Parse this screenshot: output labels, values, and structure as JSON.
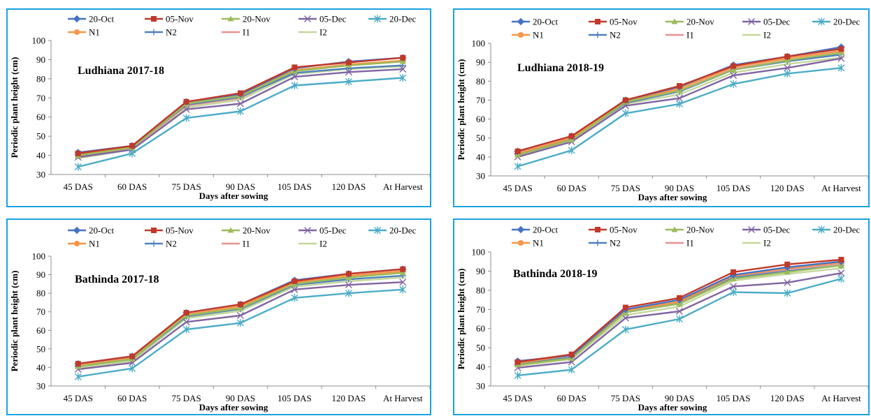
{
  "chart_data": [
    {
      "type": "line",
      "title": "Ludhiana 2017-18",
      "xlabel": "Days after sowing",
      "ylabel": "Periodic plant height (cm)",
      "ylim": [
        30,
        100
      ],
      "yticks": [
        30,
        40,
        50,
        60,
        70,
        80,
        90,
        100
      ],
      "categories": [
        "45 DAS",
        "60 DAS",
        "75 DAS",
        "90 DAS",
        "105 DAS",
        "120 DAS",
        "At Harvest"
      ],
      "series": [
        {
          "name": "20-Oct",
          "values": [
            41.5,
            45,
            68,
            72,
            85.5,
            89,
            91
          ]
        },
        {
          "name": "05-Nov",
          "values": [
            41,
            45,
            68,
            72.5,
            86,
            88.5,
            91
          ]
        },
        {
          "name": "20-Nov",
          "values": [
            40,
            44,
            67,
            71,
            84,
            87,
            89
          ]
        },
        {
          "name": "05-Dec",
          "values": [
            39,
            43,
            64,
            67,
            81,
            83.5,
            85
          ]
        },
        {
          "name": "20-Dec",
          "values": [
            34,
            41,
            59.5,
            63,
            76.5,
            78.5,
            80.5
          ]
        },
        {
          "name": "N1",
          "values": [
            40,
            44.5,
            67,
            71.5,
            84.5,
            87.5,
            89.5
          ]
        },
        {
          "name": "N2",
          "values": [
            40.5,
            44.5,
            66.5,
            70.5,
            83,
            85.5,
            87
          ]
        },
        {
          "name": "I1",
          "values": [
            39.5,
            44,
            66,
            70,
            84,
            87,
            89
          ]
        },
        {
          "name": "I2",
          "values": [
            38.5,
            43,
            65,
            69,
            82.5,
            85,
            86.5
          ]
        }
      ]
    },
    {
      "type": "line",
      "title": "Ludhiana  2018-19",
      "xlabel": "Days after sowing",
      "ylabel": "Periodic plant height (cm)",
      "ylim": [
        30,
        100
      ],
      "yticks": [
        30,
        40,
        50,
        60,
        70,
        80,
        90,
        100
      ],
      "categories": [
        "45 DAS",
        "60 DAS",
        "75 DAS",
        "90 DAS",
        "105 DAS",
        "120 DAS",
        "At Harvest"
      ],
      "series": [
        {
          "name": "20-Oct",
          "values": [
            43,
            51,
            70,
            77,
            88.5,
            93,
            98
          ]
        },
        {
          "name": "05-Nov",
          "values": [
            43,
            51,
            70,
            77.5,
            88,
            93,
            97
          ]
        },
        {
          "name": "20-Nov",
          "values": [
            41,
            49,
            69,
            75,
            86,
            91,
            95
          ]
        },
        {
          "name": "05-Dec",
          "values": [
            40,
            48,
            67,
            71,
            83,
            87,
            92
          ]
        },
        {
          "name": "20-Dec",
          "values": [
            35,
            43.5,
            63,
            68,
            78.5,
            84,
            87
          ]
        },
        {
          "name": "N1",
          "values": [
            42,
            50,
            69.5,
            76,
            87.5,
            92,
            96
          ]
        },
        {
          "name": "N2",
          "values": [
            42,
            49.5,
            68.5,
            74.5,
            86,
            90.5,
            94
          ]
        },
        {
          "name": "I1",
          "values": [
            41.5,
            49.5,
            69,
            75,
            86.5,
            91,
            95
          ]
        },
        {
          "name": "I2",
          "values": [
            40.5,
            48,
            68,
            73,
            84.5,
            89,
            92.5
          ]
        }
      ]
    },
    {
      "type": "line",
      "title": "Bathinda 2017-18",
      "xlabel": "Days after sowing",
      "ylabel": "Periodic plant height (cm)",
      "ylim": [
        30,
        100
      ],
      "yticks": [
        30,
        40,
        50,
        60,
        70,
        80,
        90,
        100
      ],
      "categories": [
        "45 DAS",
        "60 DAS",
        "75 DAS",
        "90 DAS",
        "105 DAS",
        "120 DAS",
        "At Harvest"
      ],
      "series": [
        {
          "name": "20-Oct",
          "values": [
            42,
            46,
            69.5,
            74,
            87,
            90.5,
            93
          ]
        },
        {
          "name": "05-Nov",
          "values": [
            42,
            46,
            69.5,
            74,
            86.5,
            90.5,
            93
          ]
        },
        {
          "name": "20-Nov",
          "values": [
            40.5,
            44.5,
            68,
            72,
            85,
            88.5,
            91
          ]
        },
        {
          "name": "05-Dec",
          "values": [
            39,
            42.5,
            64.5,
            68,
            82,
            84.5,
            86
          ]
        },
        {
          "name": "20-Dec",
          "values": [
            35,
            39.5,
            60.5,
            64,
            77.5,
            80,
            82
          ]
        },
        {
          "name": "N1",
          "values": [
            41,
            45,
            68.5,
            73,
            86,
            89.5,
            92
          ]
        },
        {
          "name": "N2",
          "values": [
            40.5,
            44.5,
            67.5,
            71.5,
            84.5,
            87.5,
            89.5
          ]
        },
        {
          "name": "I1",
          "values": [
            40.5,
            45,
            68,
            72,
            85.5,
            89,
            91.5
          ]
        },
        {
          "name": "I2",
          "values": [
            39.5,
            43.5,
            66.5,
            70.5,
            83.5,
            86.5,
            88.5
          ]
        }
      ]
    },
    {
      "type": "line",
      "title": "Bathinda  2018-19",
      "xlabel": "Days after sowing",
      "ylabel": "Periodic plant height (cm)",
      "ylim": [
        30,
        100
      ],
      "yticks": [
        30,
        40,
        50,
        60,
        70,
        80,
        90,
        100
      ],
      "categories": [
        "45 DAS",
        "60 DAS",
        "75 DAS",
        "90 DAS",
        "105 DAS",
        "120 DAS",
        "At Harvest"
      ],
      "series": [
        {
          "name": "20-Oct",
          "values": [
            43,
            46,
            70,
            75,
            88,
            92,
            95
          ]
        },
        {
          "name": "05-Nov",
          "values": [
            42.5,
            46.5,
            71,
            76,
            89.5,
            93.5,
            96
          ]
        },
        {
          "name": "20-Nov",
          "values": [
            41,
            44.5,
            68.5,
            73,
            86,
            89.5,
            93
          ]
        },
        {
          "name": "05-Dec",
          "values": [
            39.5,
            42.5,
            65.5,
            69,
            82,
            84,
            89
          ]
        },
        {
          "name": "20-Dec",
          "values": [
            35.5,
            38.5,
            59.5,
            65,
            79,
            78.5,
            86
          ]
        },
        {
          "name": "N1",
          "values": [
            42,
            46,
            69.5,
            74,
            87.5,
            91.5,
            94.5
          ]
        },
        {
          "name": "N2",
          "values": [
            41.5,
            45,
            68.5,
            73,
            86.5,
            90,
            93
          ]
        },
        {
          "name": "I1",
          "values": [
            41,
            45,
            68.5,
            73.5,
            87,
            91,
            94
          ]
        },
        {
          "name": "I2",
          "values": [
            40.5,
            44,
            67,
            71.5,
            85,
            88.5,
            91.5
          ]
        }
      ]
    }
  ],
  "legend_styles": [
    {
      "name": "20-Oct",
      "color": "#4472c4",
      "marker": "diamond"
    },
    {
      "name": "05-Nov",
      "color": "#c0392b",
      "marker": "square"
    },
    {
      "name": "20-Nov",
      "color": "#9bbb59",
      "marker": "triangle"
    },
    {
      "name": "05-Dec",
      "color": "#8064a2",
      "marker": "x"
    },
    {
      "name": "20-Dec",
      "color": "#4bacc6",
      "marker": "star"
    },
    {
      "name": "N1",
      "color": "#f79646",
      "marker": "circle"
    },
    {
      "name": "N2",
      "color": "#4f81bd",
      "marker": "plus"
    },
    {
      "name": "I1",
      "color": "#e6928f",
      "marker": "dash"
    },
    {
      "name": "I2",
      "color": "#c3d69b",
      "marker": "dash"
    }
  ],
  "border_color": "#1aa3e0"
}
